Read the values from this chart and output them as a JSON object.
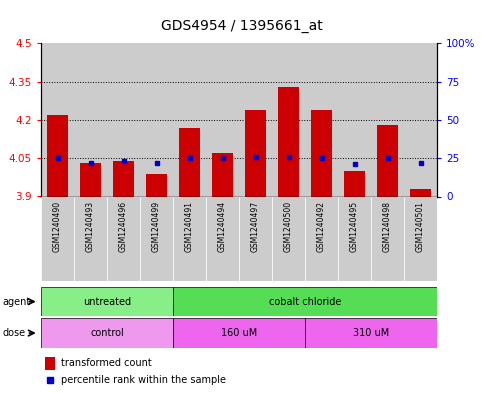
{
  "title": "GDS4954 / 1395661_at",
  "samples": [
    "GSM1240490",
    "GSM1240493",
    "GSM1240496",
    "GSM1240499",
    "GSM1240491",
    "GSM1240494",
    "GSM1240497",
    "GSM1240500",
    "GSM1240492",
    "GSM1240495",
    "GSM1240498",
    "GSM1240501"
  ],
  "transformed_count": [
    4.22,
    4.03,
    4.04,
    3.99,
    4.17,
    4.07,
    4.24,
    4.33,
    4.24,
    4.0,
    4.18,
    3.93
  ],
  "percentile_rank": [
    25,
    22,
    23,
    22,
    25,
    25,
    26,
    26,
    25,
    21,
    25,
    22
  ],
  "ylim_left": [
    3.9,
    4.5
  ],
  "ylim_right": [
    0,
    100
  ],
  "yticks_left": [
    3.9,
    4.05,
    4.2,
    4.35,
    4.5
  ],
  "yticks_right": [
    0,
    25,
    50,
    75,
    100
  ],
  "ytick_labels_left": [
    "3.9",
    "4.05",
    "4.2",
    "4.35",
    "4.5"
  ],
  "ytick_labels_right": [
    "0",
    "25",
    "50",
    "75",
    "100%"
  ],
  "hlines": [
    4.05,
    4.2,
    4.35
  ],
  "bar_color": "#cc0000",
  "dot_color": "#0000cc",
  "bar_bottom": 3.9,
  "agent_groups": [
    {
      "label": "untreated",
      "start": 0,
      "end": 3,
      "color": "#88ee88"
    },
    {
      "label": "cobalt chloride",
      "start": 4,
      "end": 11,
      "color": "#55dd55"
    }
  ],
  "dose_groups": [
    {
      "label": "control",
      "start": 0,
      "end": 3,
      "color": "#ee99ee"
    },
    {
      "label": "160 uM",
      "start": 4,
      "end": 7,
      "color": "#ee66ee"
    },
    {
      "label": "310 uM",
      "start": 8,
      "end": 11,
      "color": "#ee66ee"
    }
  ],
  "legend_bar_label": "transformed count",
  "legend_dot_label": "percentile rank within the sample",
  "col_bg": "#cccccc",
  "plot_bg": "#ffffff",
  "title_fontsize": 10,
  "tick_fontsize": 7.5,
  "sample_fontsize": 5.5,
  "row_fontsize": 7,
  "legend_fontsize": 7
}
